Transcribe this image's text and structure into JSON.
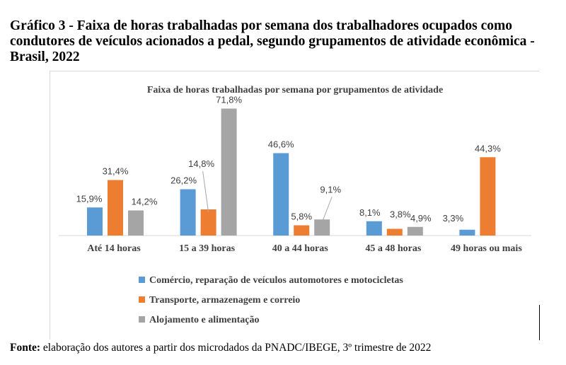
{
  "figure": {
    "title": "Gráfico 3 - Faixa de horas trabalhadas por semana dos trabalhadores ocupados como condutores de veículos acionados a pedal, segundo grupamentos de atividade econômica - Brasil, 2022",
    "source_label": "Fonte:",
    "source_text": " elaboração dos autores a partir dos microdados da PNADC/IBEGE, 3º trimestre de 2022"
  },
  "chart_data": {
    "type": "bar",
    "title": "Faixa de horas trabalhadas por semana por grupamentos de atividade",
    "xlabel": "",
    "ylabel": "",
    "ylim": [
      0,
      80
    ],
    "grid": false,
    "legend": "bottom",
    "categories": [
      "Até 14 horas",
      "15 a 39 horas",
      "40 a 44 horas",
      "45 a 48 horas",
      "49 horas ou mais"
    ],
    "series": [
      {
        "name": "Comércio, reparação de veículos automotores e motocicletas",
        "color": "#5b9bd5",
        "values": [
          15.9,
          26.2,
          46.6,
          8.1,
          3.3
        ],
        "labels": [
          "15,9%",
          "26,2%",
          "46,6%",
          "8,1%",
          "3,3%"
        ]
      },
      {
        "name": "Transporte, armazenagem e correio",
        "color": "#ed7d31",
        "values": [
          31.4,
          14.8,
          5.8,
          3.8,
          44.3
        ],
        "labels": [
          "31,4%",
          "14,8%",
          "5,8%",
          "3,8%",
          "44,3%"
        ]
      },
      {
        "name": "Alojamento e alimentação",
        "color": "#a5a5a5",
        "values": [
          14.2,
          71.8,
          9.1,
          4.9,
          0
        ],
        "labels": [
          "14,2%",
          "71,8%",
          "9,1%",
          "4,9%",
          ""
        ]
      }
    ]
  }
}
